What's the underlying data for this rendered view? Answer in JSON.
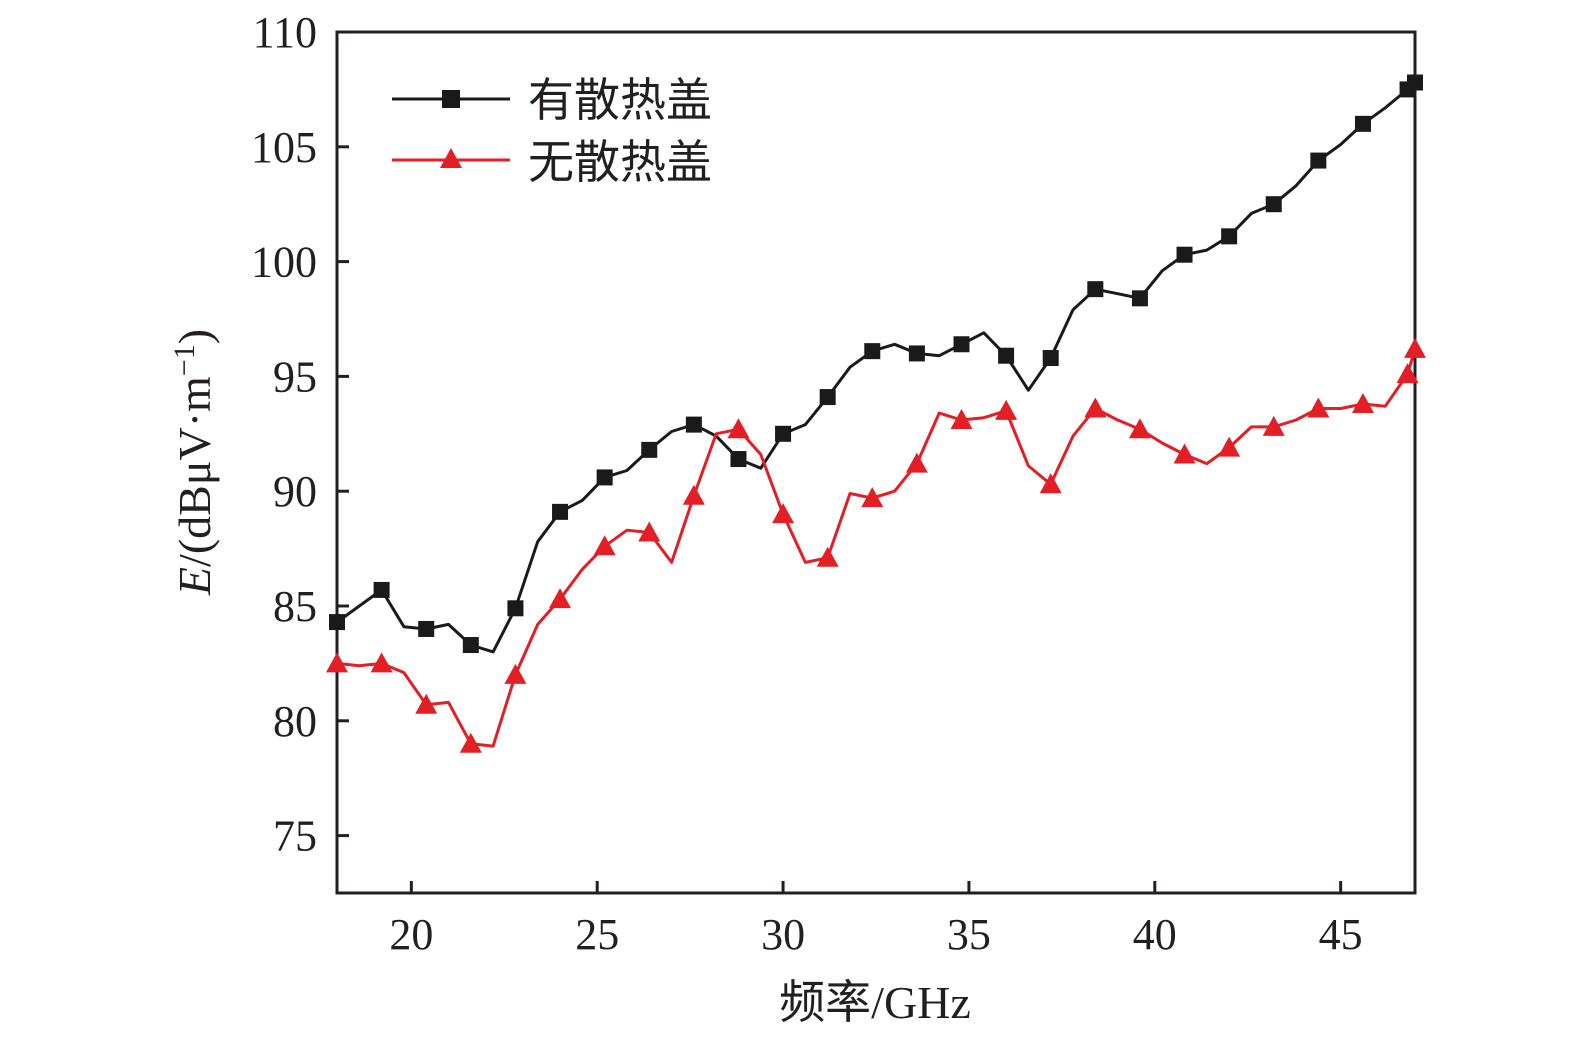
{
  "chart_data": {
    "type": "line",
    "xlabel": "频率/GHz",
    "ylabel_italic": "E",
    "ylabel_rest": "/(dBμV·m",
    "ylabel_sup": "−1",
    "ylabel_close": ")",
    "xlim": [
      18,
      47
    ],
    "ylim": [
      72.5,
      110
    ],
    "xticks": [
      20,
      25,
      30,
      35,
      40,
      45
    ],
    "yticks": [
      75,
      80,
      85,
      90,
      95,
      100,
      105,
      110
    ],
    "legend_position": "top-left",
    "grid": false,
    "series": [
      {
        "name": "有散热盖",
        "color": "#1a1a1a",
        "marker": "square",
        "x": [
          18.0,
          18.6,
          19.2,
          19.8,
          20.4,
          21.0,
          21.6,
          22.2,
          22.8,
          23.4,
          24.0,
          24.6,
          25.2,
          25.8,
          26.4,
          27.0,
          27.6,
          28.2,
          28.8,
          29.4,
          30.0,
          30.6,
          31.2,
          31.8,
          32.4,
          33.0,
          33.6,
          34.2,
          34.8,
          35.4,
          36.0,
          36.6,
          37.2,
          37.8,
          38.4,
          39.0,
          39.6,
          40.2,
          40.8,
          41.4,
          42.0,
          42.6,
          43.2,
          43.8,
          44.4,
          45.0,
          45.6,
          46.2,
          46.8,
          47.0
        ],
        "y": [
          84.3,
          85.0,
          85.7,
          84.1,
          84.0,
          84.2,
          83.3,
          83.0,
          84.9,
          87.8,
          89.1,
          89.6,
          90.6,
          90.9,
          91.8,
          92.6,
          92.9,
          92.4,
          91.4,
          91.0,
          92.5,
          92.9,
          94.1,
          95.4,
          96.1,
          96.4,
          96.0,
          95.9,
          96.4,
          96.9,
          95.9,
          94.4,
          95.8,
          97.9,
          98.8,
          98.6,
          98.4,
          99.6,
          100.3,
          100.5,
          101.1,
          102.1,
          102.5,
          103.3,
          104.4,
          105.1,
          106.0,
          106.7,
          107.5,
          107.8
        ],
        "marker_indices": [
          0,
          2,
          4,
          6,
          8,
          10,
          12,
          14,
          16,
          18,
          20,
          22,
          24,
          26,
          28,
          30,
          32,
          34,
          36,
          38,
          40,
          42,
          44,
          46,
          48,
          49
        ]
      },
      {
        "name": "无散热盖",
        "color": "#e31e24",
        "marker": "triangle",
        "x": [
          18.0,
          18.6,
          19.2,
          19.8,
          20.4,
          21.0,
          21.6,
          22.2,
          22.8,
          23.4,
          24.0,
          24.6,
          25.2,
          25.8,
          26.4,
          27.0,
          27.6,
          28.2,
          28.8,
          29.4,
          30.0,
          30.6,
          31.2,
          31.8,
          32.4,
          33.0,
          33.6,
          34.2,
          34.8,
          35.4,
          36.0,
          36.6,
          37.2,
          37.8,
          38.4,
          39.0,
          39.6,
          40.2,
          40.8,
          41.4,
          42.0,
          42.6,
          43.2,
          43.8,
          44.4,
          45.0,
          45.6,
          46.2,
          46.8,
          47.0
        ],
        "y": [
          82.5,
          82.4,
          82.5,
          82.1,
          80.7,
          80.8,
          79.0,
          78.9,
          82.0,
          84.2,
          85.3,
          86.6,
          87.6,
          88.3,
          88.2,
          86.9,
          89.8,
          92.5,
          92.7,
          91.6,
          89.0,
          86.9,
          87.1,
          89.9,
          89.7,
          90.0,
          91.2,
          93.4,
          93.1,
          93.2,
          93.5,
          91.1,
          90.3,
          92.4,
          93.6,
          93.1,
          92.7,
          92.1,
          91.6,
          91.2,
          91.9,
          92.8,
          92.8,
          93.1,
          93.6,
          93.6,
          93.8,
          93.7,
          95.1,
          96.2
        ],
        "marker_indices": [
          0,
          2,
          4,
          6,
          8,
          10,
          12,
          14,
          16,
          18,
          20,
          22,
          24,
          26,
          28,
          30,
          32,
          34,
          36,
          38,
          40,
          42,
          44,
          46,
          48,
          49
        ]
      }
    ]
  }
}
